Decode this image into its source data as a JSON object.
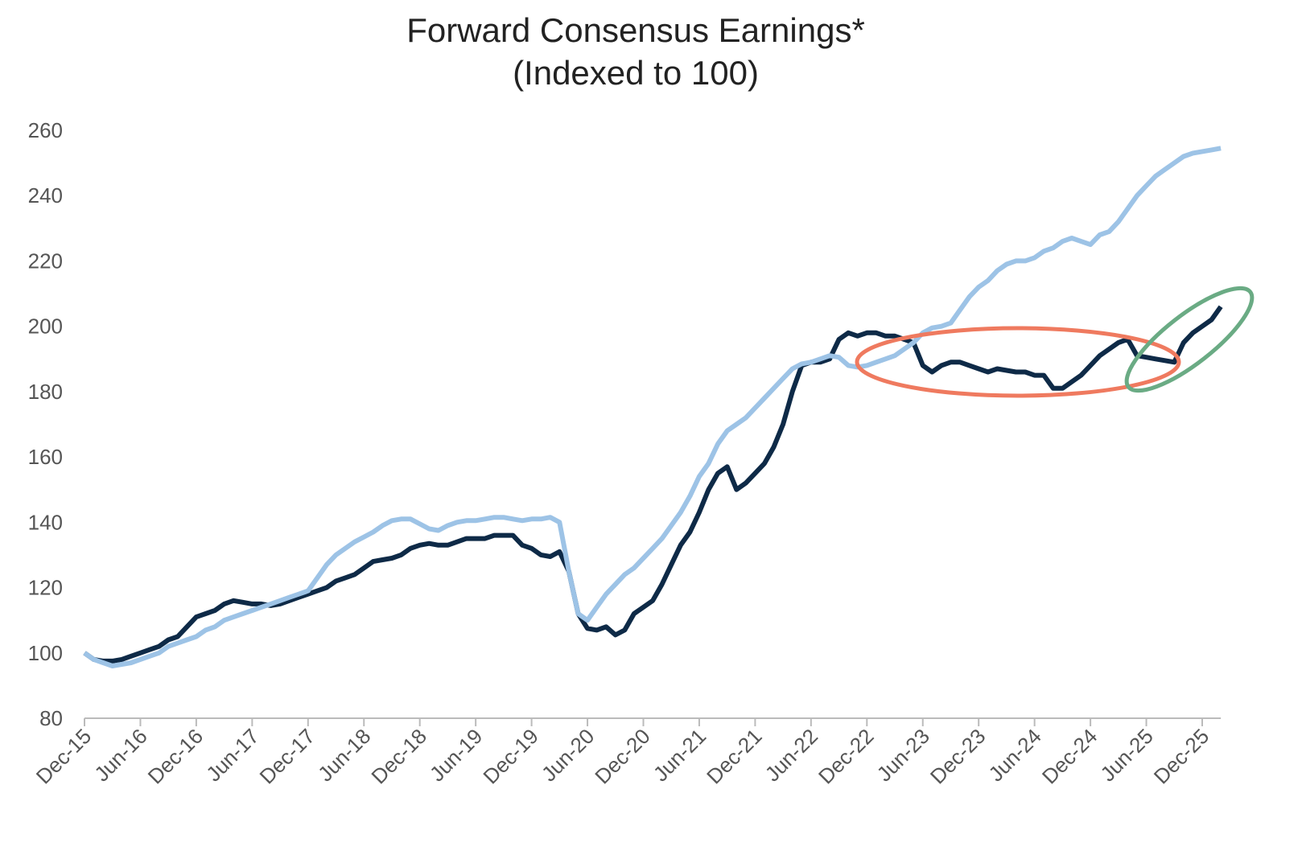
{
  "chart_data": {
    "type": "line",
    "title": "Forward Consensus Earnings*",
    "subtitle": "(Indexed to 100)",
    "categories": [
      "Dec-15",
      null,
      null,
      null,
      null,
      null,
      "Jun-16",
      null,
      null,
      null,
      null,
      null,
      "Dec-16",
      null,
      null,
      null,
      null,
      null,
      "Jun-17",
      null,
      null,
      null,
      null,
      null,
      "Dec-17",
      null,
      null,
      null,
      null,
      null,
      "Jun-18",
      null,
      null,
      null,
      null,
      null,
      "Dec-18",
      null,
      null,
      null,
      null,
      null,
      "Jun-19",
      null,
      null,
      null,
      null,
      null,
      "Dec-19",
      null,
      null,
      null,
      null,
      null,
      "Jun-20",
      null,
      null,
      null,
      null,
      null,
      "Dec-20",
      null,
      null,
      null,
      null,
      null,
      "Jun-21",
      null,
      null,
      null,
      null,
      null,
      "Dec-21",
      null,
      null,
      null,
      null,
      null,
      "Jun-22",
      null,
      null,
      null,
      null,
      null,
      "Dec-22",
      null,
      null,
      null,
      null,
      null,
      "Jun-23",
      null,
      null,
      null,
      null,
      null,
      "Dec-23",
      null,
      null,
      null,
      null,
      null,
      "Jun-24",
      null,
      null,
      null,
      null,
      null,
      "Dec-24",
      null,
      null,
      null,
      null,
      null,
      "Jun-25",
      null,
      null,
      null,
      null,
      null,
      "Dec-25",
      null,
      null
    ],
    "series": [
      {
        "color": "#0e2a47",
        "values": [
          100,
          98,
          97.5,
          97.5,
          98,
          99,
          100,
          101,
          102,
          104,
          105,
          108,
          111,
          112,
          113,
          115,
          116,
          115.5,
          115,
          115,
          114.5,
          115,
          116,
          117,
          118,
          119,
          120,
          122,
          123,
          124,
          126,
          128,
          128.5,
          129,
          130,
          132,
          133,
          133.5,
          133,
          133,
          134,
          135,
          135,
          135,
          136,
          136,
          136,
          133,
          132,
          130,
          129.5,
          131,
          125,
          112,
          107.5,
          107,
          108,
          105.5,
          107,
          112,
          114,
          116,
          121,
          127,
          133,
          137,
          143,
          150,
          155,
          157,
          150,
          152,
          155,
          158,
          163,
          170,
          180,
          188,
          189,
          189,
          190,
          196,
          198,
          197,
          198,
          198,
          197,
          197,
          196,
          195,
          188,
          186,
          188,
          189,
          189,
          188,
          187,
          186,
          187,
          186.5,
          186,
          186,
          185,
          185,
          181,
          181,
          183,
          185,
          188,
          191,
          193,
          195,
          196,
          191,
          190.5,
          190,
          189.5,
          189,
          195,
          198,
          200,
          202,
          206
        ]
      },
      {
        "color": "#9dc3e6",
        "values": [
          100,
          98,
          97,
          96,
          96.5,
          97,
          98,
          99,
          100,
          102,
          103,
          104,
          105,
          107,
          108,
          110,
          111,
          112,
          113,
          114,
          115,
          116,
          117,
          118,
          119,
          123,
          127,
          130,
          132,
          134,
          135.5,
          137,
          139,
          140.5,
          141,
          141,
          139.5,
          138,
          137.5,
          139,
          140,
          140.5,
          140.5,
          141,
          141.5,
          141.5,
          141,
          140.5,
          141,
          141,
          141.5,
          140,
          125,
          112,
          110,
          114,
          118,
          121,
          124,
          126,
          129,
          132,
          135,
          139,
          143,
          148,
          154,
          158,
          164,
          168,
          170,
          172,
          175,
          178,
          181,
          184,
          187,
          188.5,
          189,
          190,
          191,
          190.5,
          188,
          187.5,
          188,
          189,
          190,
          191,
          193,
          195,
          198,
          199.5,
          200,
          201,
          205,
          209,
          212,
          214,
          217,
          219,
          220,
          220,
          221,
          223,
          224,
          226,
          227,
          226,
          225,
          228,
          229,
          232,
          236,
          240,
          243,
          246,
          248,
          250,
          252,
          253,
          253.5,
          254,
          254.5
        ]
      }
    ],
    "ylim": [
      80,
      260
    ],
    "yticks": [
      80,
      100,
      120,
      140,
      160,
      180,
      200,
      220,
      240,
      260
    ],
    "grid": false
  }
}
